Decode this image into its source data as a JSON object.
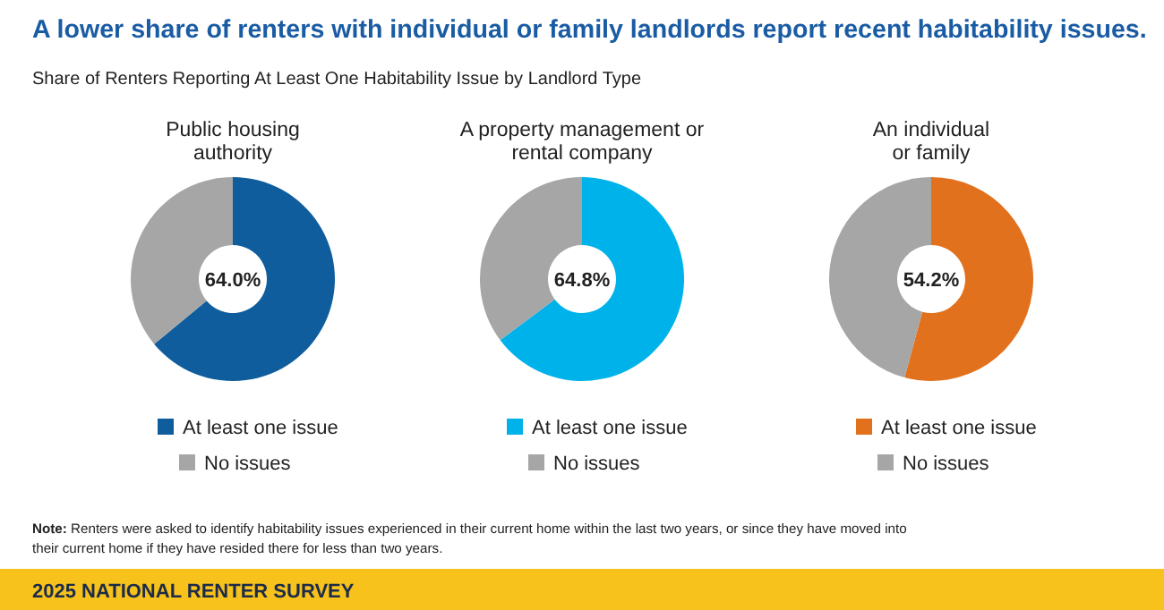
{
  "chart_data": [
    {
      "type": "other",
      "title": "A lower share of renters with individual or family landlords report recent habitability issues.",
      "subtitle": "Share of Renters Reporting At Least One Habitability Issue by Landlord Type",
      "annotations": [
        "Note: Renters were asked to identify habitability issues experienced in their current home within the last two years, or since they have moved into their current home if they have resided there for less than two years.",
        "2025 NATIONAL RENTER SURVEY"
      ]
    },
    {
      "type": "donut",
      "title": "Public housing\nauthority",
      "categories": [
        "At least one issue",
        "No issues"
      ],
      "values": [
        64.0,
        36.0
      ],
      "colors": [
        "#0f5d9c",
        "#a6a6a6"
      ],
      "value_labels": [
        "64.0%",
        null
      ],
      "legend": "bottom"
    },
    {
      "type": "donut",
      "title": "A property management or\nrental company",
      "categories": [
        "At least one issue",
        "No issues"
      ],
      "values": [
        64.8,
        35.2
      ],
      "colors": [
        "#00b2ea",
        "#a6a6a6"
      ],
      "value_labels": [
        "64.8%",
        null
      ],
      "legend": "bottom"
    },
    {
      "type": "donut",
      "title": "An individual\nor family",
      "categories": [
        "At least one issue",
        "No issues"
      ],
      "values": [
        54.2,
        45.8
      ],
      "colors": [
        "#e2711d",
        "#a6a6a6"
      ],
      "value_labels": [
        "54.2%",
        null
      ],
      "legend": "bottom"
    }
  ]
}
